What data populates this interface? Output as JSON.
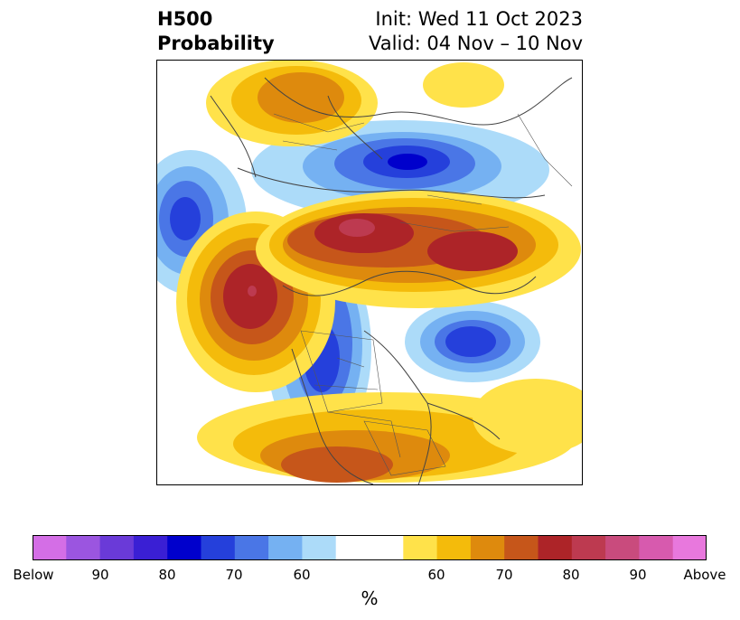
{
  "header": {
    "title_line1": "H500",
    "title_line2": "Probability",
    "init": "Init: Wed 11 Oct 2023",
    "valid": "Valid: 04 Nov – 10 Nov"
  },
  "colorbar": {
    "unit": "%",
    "colors": [
      "#d46ee6",
      "#9b55e0",
      "#6a3ad8",
      "#3a1fd4",
      "#0000cc",
      "#2540db",
      "#4a76e6",
      "#75b1f2",
      "#acdbf9",
      "#ffffff",
      "#ffe24a",
      "#f4bb0b",
      "#de8a0d",
      "#c6561a",
      "#ad2428",
      "#bd3a50",
      "#c94b7d",
      "#d75aae",
      "#e878dd"
    ],
    "ticks": [
      {
        "label": "Below"
      },
      {
        "label": "90"
      },
      {
        "label": "80"
      },
      {
        "label": "70"
      },
      {
        "label": "60"
      },
      {
        "label": "60"
      },
      {
        "label": "70"
      },
      {
        "label": "80"
      },
      {
        "label": "90"
      },
      {
        "label": "Above"
      }
    ]
  }
}
